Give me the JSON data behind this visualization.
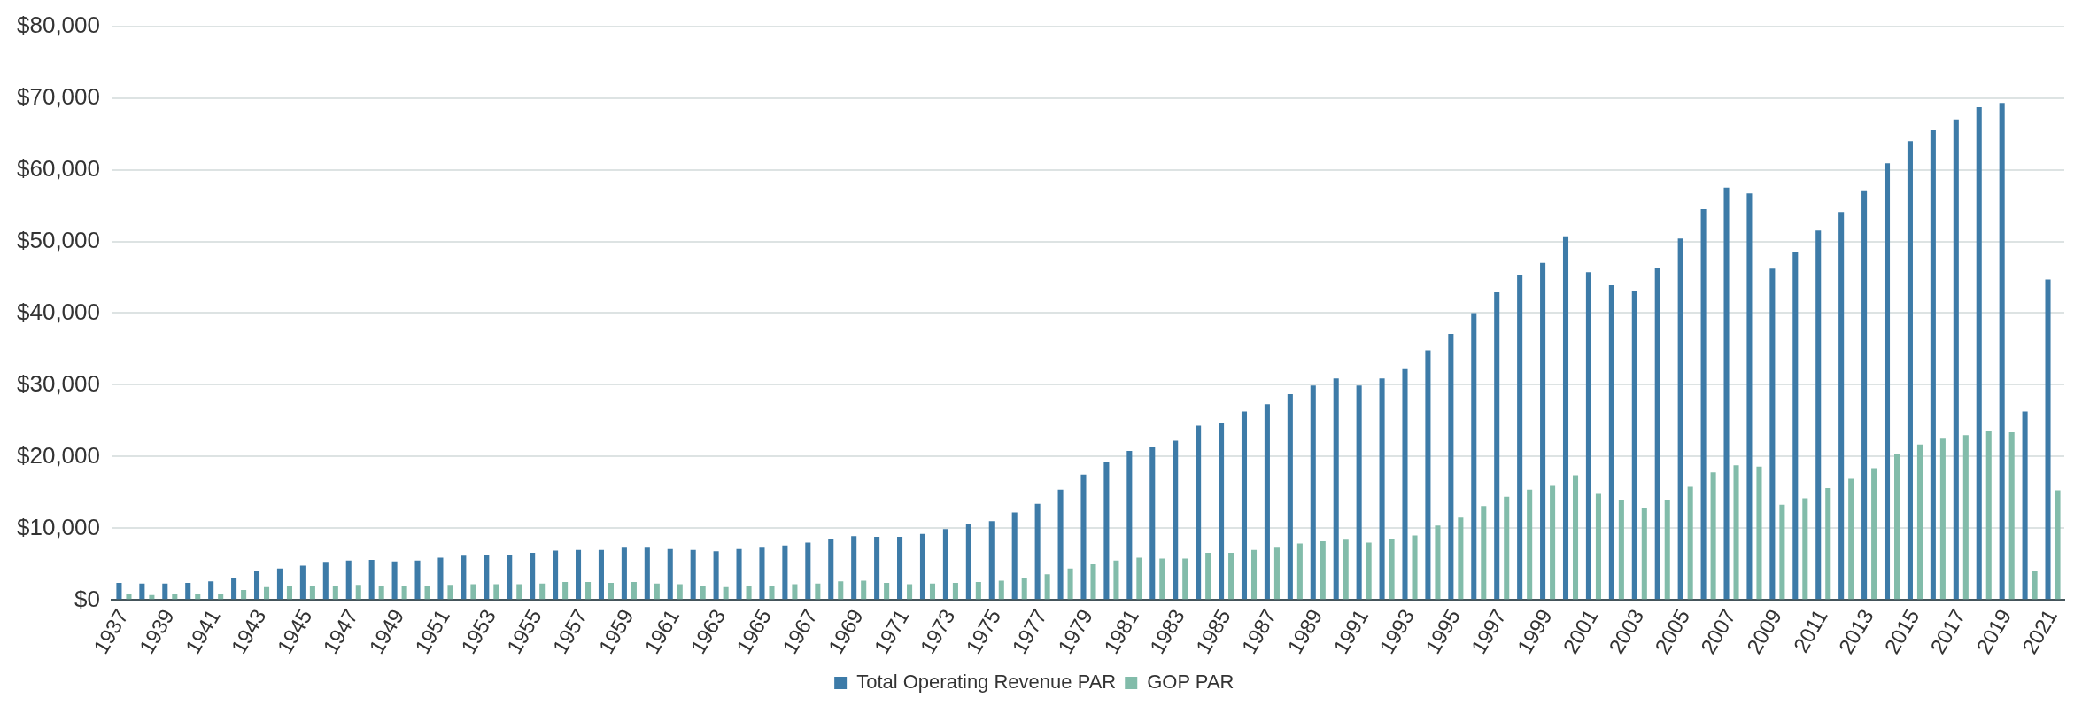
{
  "chart_data": {
    "type": "bar",
    "categories": [
      "1937",
      null,
      "1939",
      null,
      "1941",
      null,
      "1943",
      null,
      "1945",
      null,
      "1947",
      null,
      "1949",
      null,
      "1951",
      null,
      "1953",
      null,
      "1955",
      null,
      "1957",
      null,
      "1959",
      null,
      "1961",
      null,
      "1963",
      null,
      "1965",
      null,
      "1967",
      null,
      "1969",
      null,
      "1971",
      null,
      "1973",
      null,
      "1975",
      null,
      "1977",
      null,
      "1979",
      null,
      "1981",
      null,
      "1983",
      null,
      "1985",
      null,
      "1987",
      null,
      "1989",
      null,
      "1991",
      null,
      "1993",
      null,
      "1995",
      null,
      "1997",
      null,
      "1999",
      null,
      "2001",
      null,
      "2003",
      null,
      "2005",
      null,
      "2007",
      null,
      "2009",
      null,
      "2011",
      null,
      "2013",
      null,
      "2015",
      null,
      "2017",
      null,
      "2019",
      null,
      "2021"
    ],
    "series": [
      {
        "name": "Total Operating Revenue PAR",
        "color": "#3d7ba8",
        "values": [
          2400,
          2300,
          2300,
          2400,
          2600,
          3000,
          4000,
          4400,
          4800,
          5200,
          5500,
          5600,
          5400,
          5500,
          5900,
          6200,
          6300,
          6300,
          6600,
          6900,
          7000,
          7000,
          7300,
          7300,
          7100,
          7000,
          6800,
          7100,
          7300,
          7600,
          8000,
          8500,
          8900,
          8800,
          8800,
          9200,
          9900,
          10600,
          11000,
          12200,
          13400,
          15400,
          17500,
          19200,
          20800,
          21300,
          22200,
          24300,
          24700,
          26300,
          27300,
          28700,
          29900,
          30900,
          29900,
          30900,
          32300,
          34800,
          37100,
          40000,
          42900,
          45300,
          47000,
          50700,
          45700,
          43900,
          43100,
          46300,
          50400,
          54500,
          57500,
          56700,
          46200,
          48500,
          51500,
          54100,
          57000,
          60900,
          64000,
          65500,
          67000,
          68700,
          69300,
          26300,
          44700
        ]
      },
      {
        "name": "GOP PAR",
        "color": "#82bcaa",
        "values": [
          800,
          700,
          800,
          800,
          900,
          1400,
          1800,
          1900,
          2000,
          2000,
          2100,
          2000,
          2000,
          2000,
          2100,
          2200,
          2200,
          2200,
          2300,
          2500,
          2500,
          2400,
          2500,
          2300,
          2200,
          2000,
          1800,
          1900,
          2000,
          2200,
          2300,
          2600,
          2700,
          2400,
          2200,
          2300,
          2400,
          2500,
          2700,
          3100,
          3600,
          4400,
          5000,
          5500,
          5900,
          5800,
          5800,
          6600,
          6600,
          7000,
          7300,
          7900,
          8200,
          8400,
          8000,
          8500,
          9000,
          10400,
          11500,
          13100,
          14400,
          15400,
          15900,
          17400,
          14800,
          13900,
          12900,
          14000,
          15800,
          17800,
          18800,
          18600,
          13300,
          14200,
          15600,
          16900,
          18400,
          20400,
          21700,
          22500,
          23000,
          23500,
          23400,
          4000,
          15300
        ]
      }
    ],
    "ylim": [
      0,
      80000
    ],
    "yticks": [
      {
        "value": 0,
        "label": "$0"
      },
      {
        "value": 10000,
        "label": "$10,000"
      },
      {
        "value": 20000,
        "label": "$20,000"
      },
      {
        "value": 30000,
        "label": "$30,000"
      },
      {
        "value": 40000,
        "label": "$40,000"
      },
      {
        "value": 50000,
        "label": "$50,000"
      },
      {
        "value": 60000,
        "label": "$60,000"
      },
      {
        "value": 70000,
        "label": "$70,000"
      },
      {
        "value": 80000,
        "label": "$80,000"
      }
    ],
    "grid": "y",
    "legend": "bottom"
  }
}
